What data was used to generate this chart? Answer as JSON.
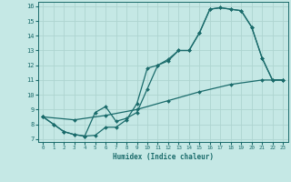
{
  "xlabel": "Humidex (Indice chaleur)",
  "xlim": [
    -0.5,
    23.5
  ],
  "ylim": [
    6.8,
    16.3
  ],
  "xticks": [
    0,
    1,
    2,
    3,
    4,
    5,
    6,
    7,
    8,
    9,
    10,
    11,
    12,
    13,
    14,
    15,
    16,
    17,
    18,
    19,
    20,
    21,
    22,
    23
  ],
  "yticks": [
    7,
    8,
    9,
    10,
    11,
    12,
    13,
    14,
    15,
    16
  ],
  "bg_color": "#c5e8e5",
  "line_color": "#1a6b6b",
  "grid_color": "#aed4d0",
  "line1_x": [
    0,
    1,
    2,
    3,
    4,
    5,
    6,
    7,
    8,
    9,
    10,
    11,
    12,
    13,
    14,
    15,
    16,
    17,
    18,
    19,
    20,
    21,
    22,
    23
  ],
  "line1_y": [
    8.5,
    8.0,
    7.5,
    7.3,
    7.2,
    7.25,
    7.8,
    7.8,
    8.3,
    9.4,
    11.8,
    12.0,
    12.4,
    13.0,
    13.0,
    14.2,
    15.8,
    15.9,
    15.8,
    15.7,
    14.6,
    12.5,
    11.0,
    11.0
  ],
  "line2_x": [
    0,
    1,
    2,
    3,
    4,
    5,
    6,
    7,
    8,
    9,
    10,
    11,
    12,
    13,
    14,
    15,
    16,
    17,
    18,
    19,
    20,
    21,
    22,
    23
  ],
  "line2_y": [
    8.5,
    8.0,
    7.5,
    7.3,
    7.2,
    8.8,
    9.2,
    8.2,
    8.4,
    8.8,
    10.4,
    12.0,
    12.3,
    13.0,
    13.0,
    14.2,
    15.8,
    15.9,
    15.8,
    15.7,
    14.6,
    12.5,
    11.0,
    11.0
  ],
  "line3_x": [
    0,
    3,
    6,
    9,
    12,
    15,
    18,
    21,
    23
  ],
  "line3_y": [
    8.5,
    8.3,
    8.6,
    9.0,
    9.6,
    10.2,
    10.7,
    11.0,
    11.0
  ]
}
